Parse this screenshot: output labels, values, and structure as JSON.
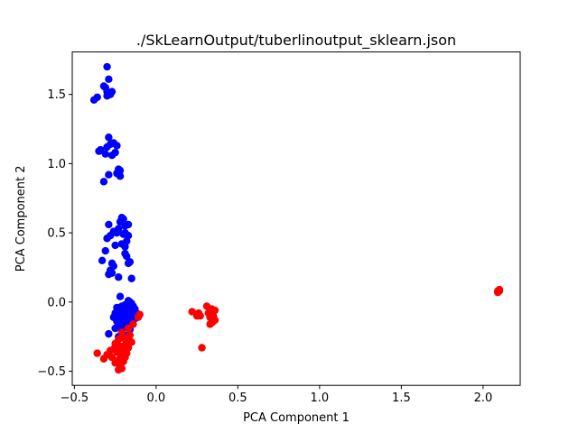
{
  "chart_data": {
    "type": "scatter",
    "title": "./SkLearnOutput/tuberlinoutput_sklearn.json",
    "xlabel": "PCA Component 1",
    "ylabel": "PCA Component 2",
    "xlim": [
      -0.513,
      2.227
    ],
    "ylim": [
      -0.602,
      1.807
    ],
    "xticks": [
      -0.5,
      0.0,
      0.5,
      1.0,
      1.5,
      2.0
    ],
    "xtick_labels": [
      "−0.5",
      "0.0",
      "0.5",
      "1.0",
      "1.5",
      "2.0"
    ],
    "yticks": [
      -0.5,
      0.0,
      0.5,
      1.0,
      1.5
    ],
    "ytick_labels": [
      "−0.5",
      "0.0",
      "0.5",
      "1.0",
      "1.5"
    ],
    "grid": false,
    "series": [
      {
        "color": "#0000ff",
        "points": [
          [
            -0.3,
            1.7
          ],
          [
            -0.29,
            1.61
          ],
          [
            -0.31,
            1.55
          ],
          [
            -0.32,
            1.56
          ],
          [
            -0.3,
            1.52
          ],
          [
            -0.28,
            1.5
          ],
          [
            -0.27,
            1.52
          ],
          [
            -0.3,
            1.49
          ],
          [
            -0.36,
            1.48
          ],
          [
            -0.38,
            1.46
          ],
          [
            -0.29,
            1.19
          ],
          [
            -0.28,
            1.14
          ],
          [
            -0.26,
            1.15
          ],
          [
            -0.24,
            1.13
          ],
          [
            -0.3,
            1.12
          ],
          [
            -0.34,
            1.1
          ],
          [
            -0.35,
            1.09
          ],
          [
            -0.31,
            1.07
          ],
          [
            -0.27,
            1.06
          ],
          [
            -0.25,
            1.08
          ],
          [
            -0.23,
            0.96
          ],
          [
            -0.22,
            0.95
          ],
          [
            -0.24,
            0.93
          ],
          [
            -0.29,
            0.92
          ],
          [
            -0.22,
            0.91
          ],
          [
            -0.32,
            0.87
          ],
          [
            -0.21,
            0.61
          ],
          [
            -0.2,
            0.6
          ],
          [
            -0.22,
            0.58
          ],
          [
            -0.17,
            0.56
          ],
          [
            -0.29,
            0.56
          ],
          [
            -0.19,
            0.55
          ],
          [
            -0.23,
            0.53
          ],
          [
            -0.24,
            0.5
          ],
          [
            -0.26,
            0.51
          ],
          [
            -0.19,
            0.5
          ],
          [
            -0.2,
            0.49
          ],
          [
            -0.28,
            0.48
          ],
          [
            -0.3,
            0.46
          ],
          [
            -0.17,
            0.48
          ],
          [
            -0.18,
            0.44
          ],
          [
            -0.21,
            0.42
          ],
          [
            -0.19,
            0.4
          ],
          [
            -0.25,
            0.41
          ],
          [
            -0.31,
            0.37
          ],
          [
            -0.19,
            0.35
          ],
          [
            -0.18,
            0.33
          ],
          [
            -0.33,
            0.3
          ],
          [
            -0.27,
            0.28
          ],
          [
            -0.26,
            0.26
          ],
          [
            -0.16,
            0.29
          ],
          [
            -0.17,
            0.28
          ],
          [
            -0.28,
            0.23
          ],
          [
            -0.27,
            0.21
          ],
          [
            -0.29,
            0.2
          ],
          [
            -0.23,
            0.18
          ],
          [
            -0.15,
            0.17
          ],
          [
            -0.22,
            0.04
          ],
          [
            -0.17,
            0.01
          ],
          [
            -0.16,
            0.0
          ],
          [
            -0.15,
            -0.01
          ],
          [
            -0.19,
            -0.02
          ],
          [
            -0.14,
            -0.03
          ],
          [
            -0.21,
            -0.03
          ],
          [
            -0.24,
            -0.04
          ],
          [
            -0.18,
            -0.05
          ],
          [
            -0.13,
            -0.05
          ],
          [
            -0.22,
            -0.06
          ],
          [
            -0.16,
            -0.06
          ],
          [
            -0.2,
            -0.07
          ],
          [
            -0.14,
            -0.07
          ],
          [
            -0.25,
            -0.08
          ],
          [
            -0.18,
            -0.08
          ],
          [
            -0.12,
            -0.08
          ],
          [
            -0.23,
            -0.09
          ],
          [
            -0.15,
            -0.1
          ],
          [
            -0.19,
            -0.1
          ],
          [
            -0.26,
            -0.11
          ],
          [
            -0.21,
            -0.12
          ],
          [
            -0.13,
            -0.12
          ],
          [
            -0.17,
            -0.13
          ],
          [
            -0.24,
            -0.14
          ],
          [
            -0.2,
            -0.15
          ],
          [
            -0.15,
            -0.15
          ],
          [
            -0.22,
            -0.17
          ],
          [
            -0.18,
            -0.18
          ],
          [
            -0.25,
            -0.19
          ],
          [
            -0.16,
            -0.2
          ],
          [
            -0.21,
            -0.21
          ],
          [
            -0.29,
            -0.23
          ],
          [
            -0.19,
            -0.24
          ],
          [
            -0.23,
            -0.25
          ]
        ]
      },
      {
        "color": "#ff0000",
        "points": [
          [
            -0.1,
            -0.09
          ],
          [
            -0.11,
            -0.11
          ],
          [
            -0.14,
            -0.16
          ],
          [
            -0.17,
            -0.19
          ],
          [
            -0.21,
            -0.22
          ],
          [
            -0.16,
            -0.24
          ],
          [
            -0.2,
            -0.26
          ],
          [
            -0.23,
            -0.27
          ],
          [
            -0.18,
            -0.28
          ],
          [
            -0.15,
            -0.29
          ],
          [
            -0.25,
            -0.3
          ],
          [
            -0.19,
            -0.31
          ],
          [
            -0.22,
            -0.32
          ],
          [
            -0.17,
            -0.33
          ],
          [
            -0.26,
            -0.34
          ],
          [
            -0.2,
            -0.35
          ],
          [
            -0.24,
            -0.36
          ],
          [
            -0.28,
            -0.35
          ],
          [
            -0.18,
            -0.37
          ],
          [
            -0.22,
            -0.38
          ],
          [
            -0.3,
            -0.38
          ],
          [
            -0.36,
            -0.37
          ],
          [
            -0.19,
            -0.4
          ],
          [
            -0.27,
            -0.4
          ],
          [
            -0.32,
            -0.41
          ],
          [
            -0.23,
            -0.42
          ],
          [
            -0.2,
            -0.43
          ],
          [
            -0.25,
            -0.44
          ],
          [
            -0.22,
            -0.46
          ],
          [
            -0.21,
            -0.48
          ],
          [
            -0.23,
            -0.49
          ],
          [
            0.31,
            -0.03
          ],
          [
            0.34,
            -0.05
          ],
          [
            0.36,
            -0.06
          ],
          [
            0.22,
            -0.07
          ],
          [
            0.32,
            -0.08
          ],
          [
            0.26,
            -0.08
          ],
          [
            0.25,
            -0.1
          ],
          [
            0.35,
            -0.1
          ],
          [
            0.27,
            -0.1
          ],
          [
            0.33,
            -0.11
          ],
          [
            0.36,
            -0.13
          ],
          [
            0.35,
            -0.14
          ],
          [
            0.34,
            -0.15
          ],
          [
            0.33,
            -0.16
          ],
          [
            0.28,
            -0.33
          ],
          [
            2.09,
            0.08
          ],
          [
            2.1,
            0.08
          ],
          [
            2.09,
            0.07
          ],
          [
            2.1,
            0.09
          ]
        ]
      }
    ]
  }
}
